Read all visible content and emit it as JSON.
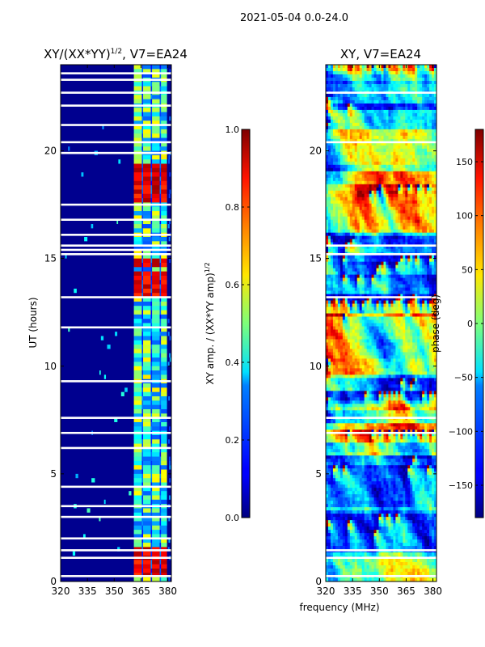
{
  "figure": {
    "suptitle": "2021-05-04 0.0-24.0",
    "shared_xlabel": "frequency (MHz)"
  },
  "chart_data": [
    {
      "type": "heatmap",
      "title": "XY/(XX*YY)",
      "title_exponent": "1/2",
      "title_suffix": ", V7=EA24",
      "xlabel": "",
      "ylabel": "UT (hours)",
      "xlim": [
        320,
        382
      ],
      "ylim": [
        0,
        24
      ],
      "xticks": [
        "320",
        "335",
        "350",
        "365",
        "380"
      ],
      "xtick_values": [
        320,
        335,
        350,
        365,
        380
      ],
      "yticks": [
        "0",
        "5",
        "10",
        "15",
        "20"
      ],
      "ytick_values": [
        0,
        5,
        10,
        15,
        20
      ],
      "colorbar": {
        "label": "XY amp. / (XX*YY amp)",
        "label_exponent": "1/2",
        "range": [
          0.0,
          1.0
        ],
        "ticks": [
          "0.0",
          "0.2",
          "0.4",
          "0.6",
          "0.8",
          "1.0"
        ],
        "tick_values": [
          0.0,
          0.2,
          0.4,
          0.6,
          0.8,
          1.0
        ],
        "colormap": "jet"
      },
      "active_band_mhz": [
        360,
        380
      ],
      "active_band_columns_mhz": [
        361,
        366,
        371,
        376,
        380
      ],
      "high_amplitude_hours": [
        0.5,
        0.9,
        1.3,
        13.5,
        14.1,
        14.8,
        17.9,
        18.4,
        18.8,
        19.2
      ],
      "gap_hours": [
        0.25,
        1.1,
        1.45,
        2.0,
        3.0,
        3.5,
        4.4,
        6.2,
        6.9,
        7.6,
        9.3,
        11.8,
        13.2,
        15.2,
        15.4,
        15.6,
        16.1,
        16.8,
        17.5,
        19.9,
        20.4,
        21.2,
        22.1,
        22.7,
        23.3,
        23.6
      ]
    },
    {
      "type": "heatmap",
      "title": "XY, V7=EA24",
      "xlabel": "",
      "ylabel": "",
      "xlim": [
        320,
        382
      ],
      "ylim": [
        0,
        24
      ],
      "xticks": [
        "320",
        "335",
        "350",
        "365",
        "380"
      ],
      "xtick_values": [
        320,
        335,
        350,
        365,
        380
      ],
      "yticks": [
        "0",
        "5",
        "10",
        "15",
        "20"
      ],
      "ytick_values": [
        0,
        5,
        10,
        15,
        20
      ],
      "colorbar": {
        "label": "phase (deg)",
        "range": [
          -180,
          180
        ],
        "ticks": [
          "−150",
          "−100",
          "−50",
          "0",
          "50",
          "100",
          "150"
        ],
        "tick_values": [
          -150,
          -100,
          -50,
          0,
          50,
          100,
          150
        ],
        "colormap": "jet"
      },
      "gap_hours": [
        0.25,
        1.1,
        1.45,
        6.9,
        7.6,
        13.2,
        15.2,
        15.6,
        20.4,
        22.7
      ]
    }
  ]
}
